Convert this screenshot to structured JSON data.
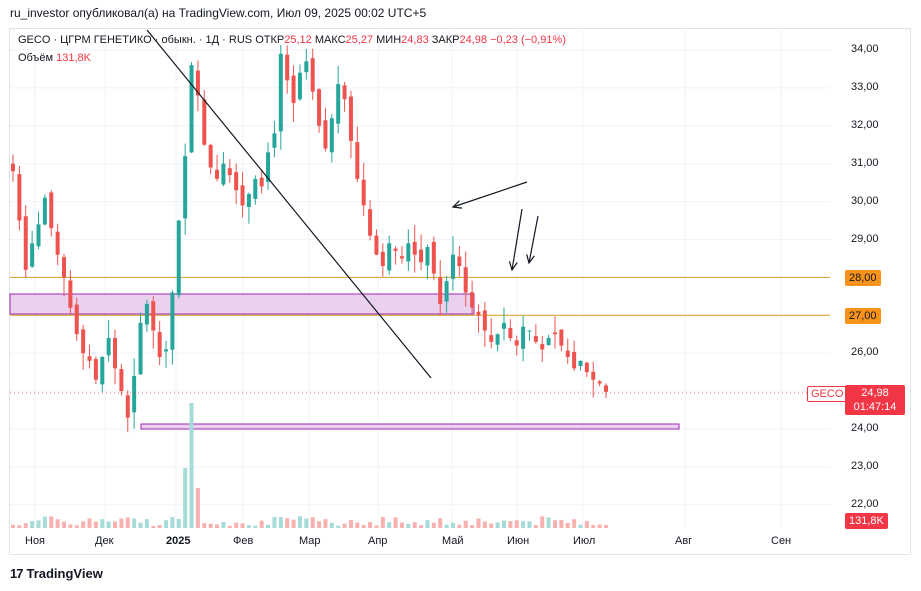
{
  "publisher_line": "ru_investor опубликовал(а) на TradingView.com, Июл 09, 2025 00:02 UTC+5",
  "legend": {
    "ticker": "GECO · ЦГРМ ГЕНЕТИКО · обыкн. · 1Д · RUS",
    "open_label": "ОТКР",
    "open": "25,12",
    "high_label": "МАКС",
    "high": "25,27",
    "low_label": "МИН",
    "low": "24,83",
    "close_label": "ЗАКР",
    "close": "24,98",
    "change": "−0,23 (−0,91%)",
    "volume_label": "Объём",
    "volume": "131,8K"
  },
  "price_badge": {
    "ticker": "GECO",
    "price": "24,98",
    "countdown": "01:47:14"
  },
  "level_badges": [
    "28,00",
    "27,00"
  ],
  "volume_badge": "131,8K",
  "brand": {
    "logo": "17",
    "name": "TradingView"
  },
  "colors": {
    "up": "#26a69a",
    "down": "#ef5350",
    "level": "#d6a01f",
    "zone": "#e1bee7",
    "zone_border": "#9c27b0",
    "badge_level": "#f7931a",
    "badge_price": "#f23645"
  },
  "chart_data": {
    "type": "candlestick",
    "y_ticks": [
      "34,00",
      "33,00",
      "32,00",
      "31,00",
      "30,00",
      "29,00",
      "28,00",
      "27,00",
      "26,00",
      "25,00",
      "24,00",
      "23,00",
      "22,00"
    ],
    "y_tick_values": [
      34,
      33,
      32,
      31,
      30,
      29,
      28,
      27,
      26,
      25,
      24,
      23,
      22
    ],
    "x_ticks": [
      "Ноя",
      "Дек",
      "2025",
      "Фев",
      "Мар",
      "Апр",
      "Май",
      "Июн",
      "Июл",
      "Авг",
      "Сен"
    ],
    "ylim": [
      21.3,
      34.7
    ],
    "last_price": 24.98,
    "horizontal_levels": [
      28.0,
      27.0
    ],
    "zones": [
      {
        "from_date_index": 0,
        "to_date_index": 44,
        "low": 27.05,
        "high": 27.55
      },
      {
        "from_date_index": 30,
        "to_date_index": 120,
        "low": 24.0,
        "high": 24.12
      }
    ],
    "closes_approx": [
      30.8,
      29.5,
      28.2,
      28.9,
      29.4,
      30.1,
      29.3,
      28.6,
      28.0,
      27.2,
      26.5,
      26.0,
      25.8,
      25.3,
      25.9,
      26.4,
      25.6,
      25.0,
      24.3,
      25.4,
      26.8,
      27.3,
      26.6,
      25.9,
      26.1,
      27.6,
      29.5,
      31.2,
      33.6,
      32.8,
      31.5,
      30.9,
      30.6,
      31.0,
      30.7,
      30.3,
      29.9,
      30.2,
      30.6,
      30.4,
      31.3,
      31.8,
      33.9,
      33.2,
      32.6,
      33.4,
      33.7,
      32.9,
      32.0,
      31.4,
      32.2,
      33.1,
      32.7,
      31.6,
      30.6,
      29.9,
      29.1,
      28.6,
      28.3,
      28.9,
      28.7,
      28.5,
      28.9,
      28.6,
      28.4,
      28.8,
      28.1,
      27.3,
      27.9,
      28.6,
      28.3,
      27.6,
      27.2,
      27.0,
      26.6,
      26.3,
      26.5,
      26.8,
      26.4,
      26.2,
      26.7,
      26.6,
      26.3,
      26.1,
      26.4,
      26.5,
      26.2,
      25.9,
      25.6,
      25.8,
      25.5,
      25.3,
      25.2,
      24.98
    ]
  }
}
